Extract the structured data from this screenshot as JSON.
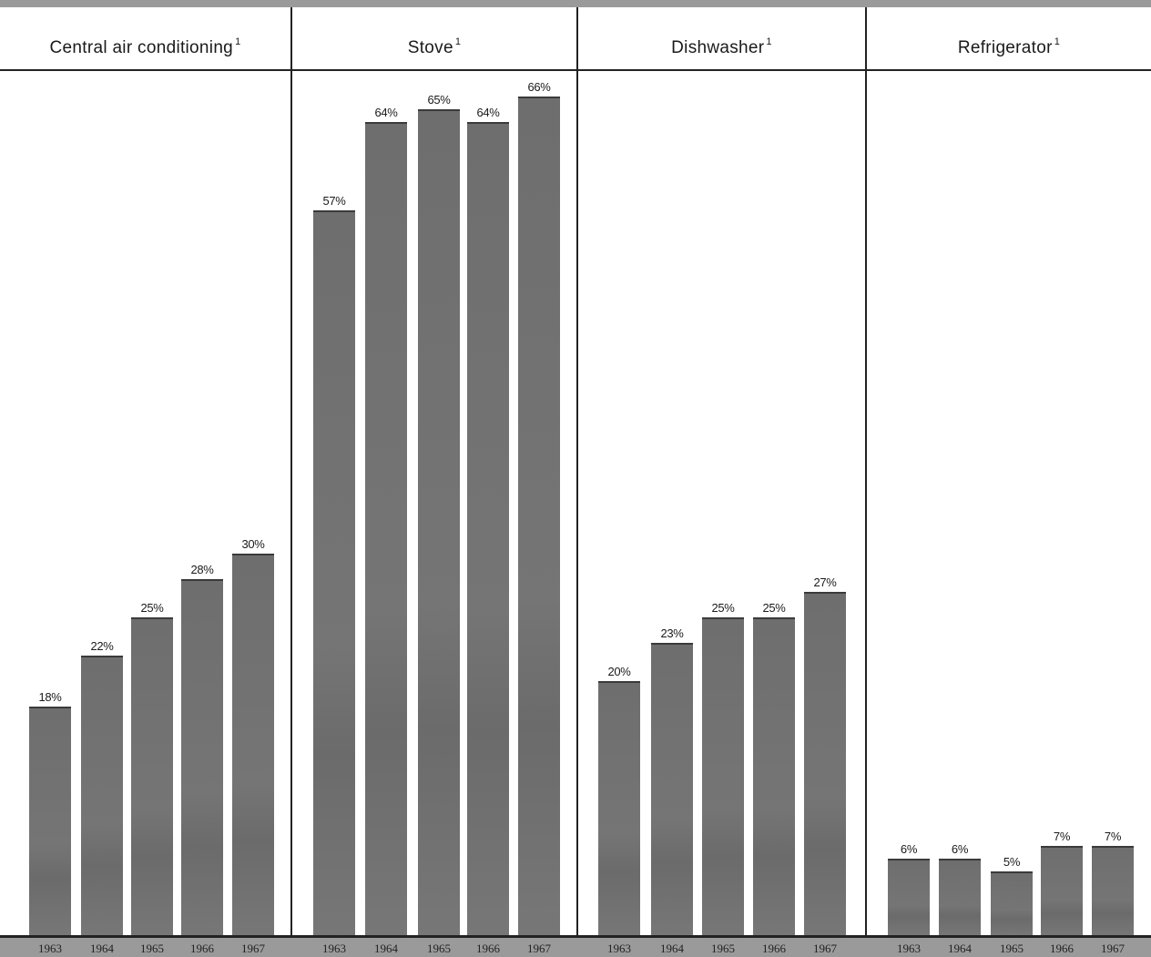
{
  "chart_data": {
    "type": "bar",
    "unit": "%",
    "categories": [
      "1963",
      "1964",
      "1965",
      "1966",
      "1967"
    ],
    "panels": [
      {
        "title": "Central air conditioning",
        "footnote": "1",
        "values": [
          18,
          22,
          25,
          28,
          30
        ]
      },
      {
        "title": "Stove",
        "footnote": "1",
        "values": [
          57,
          64,
          65,
          64,
          66
        ]
      },
      {
        "title": "Dishwasher",
        "footnote": "1",
        "values": [
          20,
          23,
          25,
          25,
          27
        ]
      },
      {
        "title": "Refrigerator",
        "footnote": "1",
        "values": [
          6,
          6,
          5,
          7,
          7
        ]
      }
    ],
    "ylim": [
      0,
      100
    ],
    "grid": false,
    "legend": "none"
  },
  "colors": {
    "bar": "#727272",
    "background": "#ffffff",
    "frame": "#222222"
  }
}
